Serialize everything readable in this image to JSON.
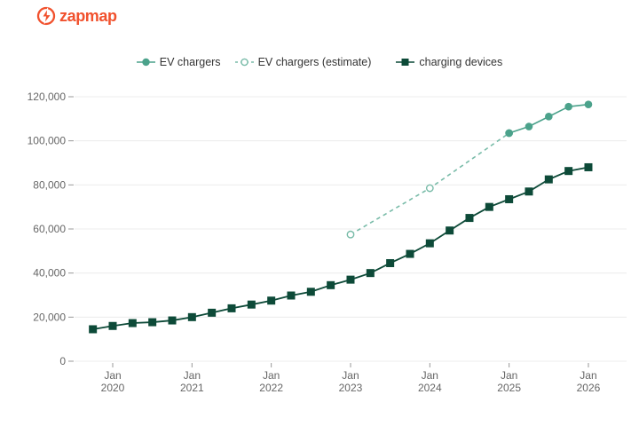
{
  "header": {
    "logo_text": "zapmap",
    "logo_color": "#f1512d"
  },
  "legend": [
    {
      "label": "EV chargers",
      "color": "#4ba28b",
      "marker": "filled-circle",
      "line": "solid"
    },
    {
      "label": "EV chargers (estimate)",
      "color": "#78bba8",
      "marker": "open-circle",
      "line": "dashed"
    },
    {
      "label": "charging devices",
      "color": "#0d4a38",
      "marker": "filled-square",
      "line": "solid"
    }
  ],
  "chart_data": {
    "type": "line",
    "title": "",
    "xlabel": "",
    "ylabel": "",
    "ylim": [
      0,
      120000
    ],
    "grid": true,
    "legend_position": "top",
    "axis_text_color": "#666666",
    "gridline_color": "#ececec",
    "tick_color": "#999999",
    "y_ticks": [
      {
        "value": 0,
        "label": "0"
      },
      {
        "value": 20000,
        "label": "20,000"
      },
      {
        "value": 40000,
        "label": "40,000"
      },
      {
        "value": 60000,
        "label": "60,000"
      },
      {
        "value": 80000,
        "label": "80,000"
      },
      {
        "value": 100000,
        "label": "100,000"
      },
      {
        "value": 120000,
        "label": "120,000"
      }
    ],
    "x_ticks": [
      {
        "month": "Jan",
        "year": "2020"
      },
      {
        "month": "Jan",
        "year": "2021"
      },
      {
        "month": "Jan",
        "year": "2022"
      },
      {
        "month": "Jan",
        "year": "2023"
      },
      {
        "month": "Jan",
        "year": "2024"
      },
      {
        "month": "Jan",
        "year": "2025"
      },
      {
        "month": "Jan",
        "year": "2026"
      }
    ],
    "series": [
      {
        "id": "ev-chargers",
        "name": "EV chargers",
        "color": "#4ba28b",
        "marker": "circle",
        "line": "solid",
        "z": 3,
        "x": [
          "2025-01",
          "2025-04",
          "2025-07",
          "2025-10",
          "2026-01"
        ],
        "values": [
          103500,
          106500,
          111000,
          115500,
          116500
        ]
      },
      {
        "id": "ev-chargers-estimate",
        "name": "EV chargers (estimate)",
        "color": "#78bba8",
        "marker": "open-circle",
        "line": "dashed",
        "z": 1,
        "x": [
          "2023-01",
          "2024-01",
          "2025-01"
        ],
        "values": [
          57500,
          78500,
          103500
        ]
      },
      {
        "id": "charging-devices",
        "name": "charging devices",
        "color": "#0d4a38",
        "marker": "square",
        "line": "solid",
        "z": 2,
        "x": [
          "2019-10",
          "2020-01",
          "2020-04",
          "2020-07",
          "2020-10",
          "2021-01",
          "2021-04",
          "2021-07",
          "2021-10",
          "2022-01",
          "2022-04",
          "2022-07",
          "2022-10",
          "2023-01",
          "2023-04",
          "2023-07",
          "2023-10",
          "2024-01",
          "2024-04",
          "2024-07",
          "2024-10",
          "2025-01",
          "2025-04",
          "2025-07",
          "2025-10",
          "2026-01"
        ],
        "values": [
          14500,
          16000,
          17300,
          17700,
          18500,
          20000,
          22000,
          24000,
          25700,
          27500,
          29800,
          31500,
          34500,
          37000,
          40000,
          44500,
          48700,
          53500,
          59300,
          65000,
          70000,
          73500,
          77000,
          82500,
          86300,
          88000
        ]
      }
    ]
  }
}
